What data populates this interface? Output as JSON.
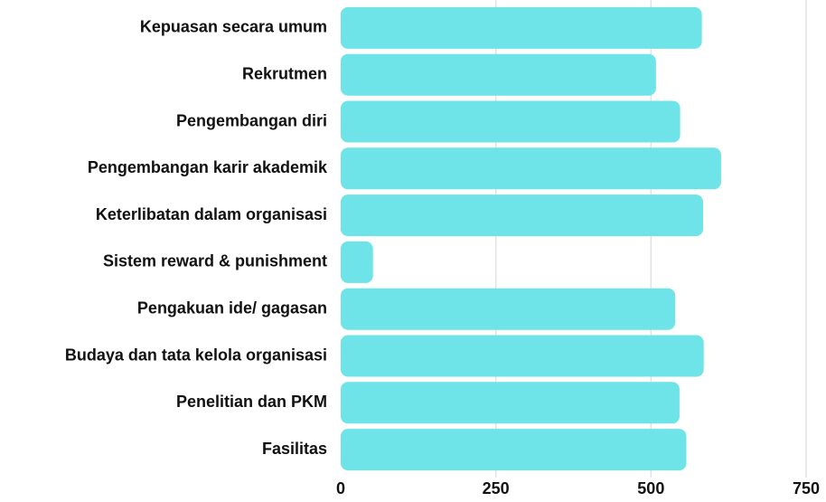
{
  "chart_data": {
    "type": "bar",
    "orientation": "horizontal",
    "categories": [
      "Kepuasan secara umum",
      "Rekrutmen",
      "Pengembangan diri",
      "Pengembangan karir akademik",
      "Keterlibatan dalam organisasi",
      "Sistem reward & punishment",
      "Pengakuan ide/ gagasan",
      "Budaya dan tata kelola organisasi",
      "Penelitian dan PKM",
      "Fasilitas"
    ],
    "values": [
      582,
      508,
      547,
      613,
      584,
      52,
      539,
      585,
      546,
      557
    ],
    "color": "#6ee3e8",
    "xlim": [
      0,
      750
    ],
    "xticks": [
      0,
      250,
      500,
      750
    ],
    "grid": true
  }
}
